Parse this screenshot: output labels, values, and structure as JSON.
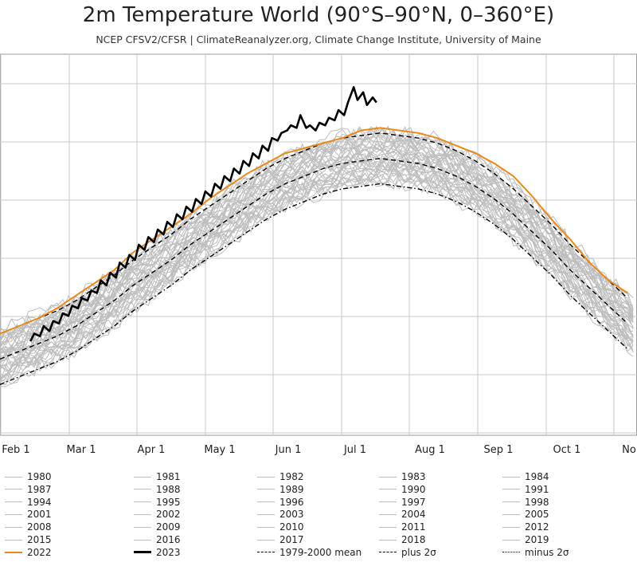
{
  "chart_data": {
    "type": "line",
    "title": "2m Temperature World (90°S–90°N, 0–360°E)",
    "subtitle": "NCEP CFSV2/CFSR | ClimateReanalyzer.org, Climate Change Institute, University of Maine",
    "x_ticks": [
      "Feb 1",
      "Mar 1",
      "Apr 1",
      "May 1",
      "Jun 1",
      "Jul 1",
      "Aug 1",
      "Sep 1",
      "Oct 1",
      "No"
    ],
    "grid": true,
    "colors": {
      "grey_years": "#bdbdbd",
      "y2022": "#e8891a",
      "y2023": "#000000",
      "reference": "#000000"
    },
    "legend": {
      "placement": "bottom",
      "rows": [
        [
          "1980",
          "1981",
          "1982",
          "1983",
          "1984"
        ],
        [
          "1987",
          "1988",
          "1989",
          "1990",
          "1991"
        ],
        [
          "1994",
          "1995",
          "1996",
          "1997",
          "1998"
        ],
        [
          "2001",
          "2002",
          "2003",
          "2004",
          "2005"
        ],
        [
          "2008",
          "2009",
          "2010",
          "2011",
          "2012"
        ],
        [
          "2015",
          "2016",
          "2017",
          "2018",
          "2019"
        ],
        [
          "2022",
          "2023",
          "1979-2000 mean",
          "plus 2σ",
          "minus 2σ"
        ]
      ]
    },
    "series": [
      {
        "name": "2023",
        "color": "#000000",
        "x_day": [
          16,
          18,
          21,
          23,
          26,
          28,
          31,
          33,
          36,
          38,
          41,
          43,
          46,
          48,
          51,
          53,
          56,
          58,
          61,
          63,
          66,
          68,
          71,
          73,
          76,
          78,
          81,
          83,
          86,
          88,
          91,
          93,
          96,
          98,
          101,
          103,
          106,
          108,
          111,
          113,
          116,
          118,
          121,
          123,
          126,
          128,
          131,
          133,
          136,
          138,
          141,
          143,
          146,
          148,
          151,
          153,
          156,
          158,
          161,
          163,
          166,
          168,
          171,
          173,
          176,
          178,
          181,
          183,
          186,
          188,
          191,
          193,
          196,
          198
        ],
        "y": [
          -1.15,
          -1.0,
          -1.05,
          -0.85,
          -0.95,
          -0.75,
          -0.8,
          -0.6,
          -0.65,
          -0.45,
          -0.5,
          -0.3,
          -0.35,
          -0.15,
          -0.2,
          0.05,
          -0.05,
          0.2,
          0.1,
          0.4,
          0.3,
          0.55,
          0.45,
          0.75,
          0.65,
          0.9,
          0.8,
          1.05,
          0.95,
          1.2,
          1.1,
          1.35,
          1.25,
          1.5,
          1.4,
          1.65,
          1.55,
          1.8,
          1.7,
          1.95,
          1.85,
          2.1,
          2.0,
          2.25,
          2.15,
          2.4,
          2.3,
          2.55,
          2.45,
          2.7,
          2.6,
          2.85,
          2.8,
          2.95,
          3.0,
          3.1,
          3.05,
          3.3,
          3.05,
          3.1,
          3.0,
          3.15,
          3.1,
          3.25,
          3.2,
          3.4,
          3.3,
          3.55,
          3.85,
          3.6,
          3.75,
          3.5,
          3.65,
          3.55
        ]
      },
      {
        "name": "2022",
        "color": "#e8891a",
        "x_day": [
          0,
          10,
          20,
          30,
          40,
          50,
          60,
          70,
          80,
          90,
          100,
          110,
          120,
          130,
          140,
          150,
          160,
          170,
          180,
          190,
          200,
          210,
          220,
          230,
          240,
          250,
          260,
          270,
          280,
          290,
          300,
          310,
          320,
          330
        ],
        "y": [
          -1.0,
          -0.85,
          -0.7,
          -0.5,
          -0.25,
          0.0,
          0.25,
          0.6,
          0.85,
          1.1,
          1.35,
          1.65,
          1.9,
          2.15,
          2.35,
          2.55,
          2.65,
          2.75,
          2.85,
          3.0,
          3.05,
          3.0,
          2.95,
          2.85,
          2.7,
          2.55,
          2.35,
          2.1,
          1.7,
          1.25,
          0.85,
          0.4,
          0.05,
          -0.2
        ]
      },
      {
        "name": "1979-2000 mean",
        "color": "#000000",
        "dash": "dashed",
        "x_day": [
          0,
          10,
          20,
          30,
          40,
          50,
          60,
          70,
          80,
          90,
          100,
          110,
          120,
          130,
          140,
          150,
          160,
          170,
          180,
          190,
          200,
          210,
          220,
          230,
          240,
          250,
          260,
          270,
          280,
          290,
          300,
          310,
          320,
          330
        ],
        "y": [
          -1.5,
          -1.35,
          -1.2,
          -1.05,
          -0.85,
          -0.6,
          -0.35,
          -0.05,
          0.2,
          0.45,
          0.75,
          1.0,
          1.25,
          1.5,
          1.75,
          1.95,
          2.1,
          2.25,
          2.35,
          2.4,
          2.45,
          2.4,
          2.35,
          2.25,
          2.1,
          1.9,
          1.65,
          1.35,
          1.0,
          0.65,
          0.25,
          -0.1,
          -0.45,
          -0.8
        ]
      },
      {
        "name": "plus 2σ",
        "color": "#000000",
        "dash": "dashed",
        "x_day": [
          0,
          10,
          20,
          30,
          40,
          50,
          60,
          70,
          80,
          90,
          100,
          110,
          120,
          130,
          140,
          150,
          160,
          170,
          180,
          190,
          200,
          210,
          220,
          230,
          240,
          250,
          260,
          270,
          280,
          290,
          300,
          310,
          320,
          330
        ],
        "y": [
          -1.0,
          -0.85,
          -0.7,
          -0.55,
          -0.35,
          -0.1,
          0.15,
          0.45,
          0.7,
          0.95,
          1.25,
          1.5,
          1.75,
          2.0,
          2.25,
          2.45,
          2.6,
          2.75,
          2.85,
          2.9,
          2.95,
          2.9,
          2.85,
          2.75,
          2.6,
          2.4,
          2.15,
          1.85,
          1.5,
          1.15,
          0.75,
          0.4,
          0.05,
          -0.3
        ]
      },
      {
        "name": "minus 2σ",
        "color": "#000000",
        "dash": "dashdot",
        "x_day": [
          0,
          10,
          20,
          30,
          40,
          50,
          60,
          70,
          80,
          90,
          100,
          110,
          120,
          130,
          140,
          150,
          160,
          170,
          180,
          190,
          200,
          210,
          220,
          230,
          240,
          250,
          260,
          270,
          280,
          290,
          300,
          310,
          320,
          330
        ],
        "y": [
          -2.0,
          -1.85,
          -1.7,
          -1.55,
          -1.35,
          -1.1,
          -0.85,
          -0.55,
          -0.3,
          -0.05,
          0.25,
          0.5,
          0.75,
          1.0,
          1.25,
          1.45,
          1.6,
          1.75,
          1.85,
          1.9,
          1.95,
          1.9,
          1.85,
          1.75,
          1.6,
          1.4,
          1.15,
          0.85,
          0.5,
          0.15,
          -0.25,
          -0.6,
          -0.95,
          -1.3
        ]
      }
    ],
    "grey_band": {
      "years": 41,
      "spread": 0.5
    },
    "x_range": [
      0,
      335
    ],
    "y_range": [
      -3.0,
      4.5
    ]
  }
}
